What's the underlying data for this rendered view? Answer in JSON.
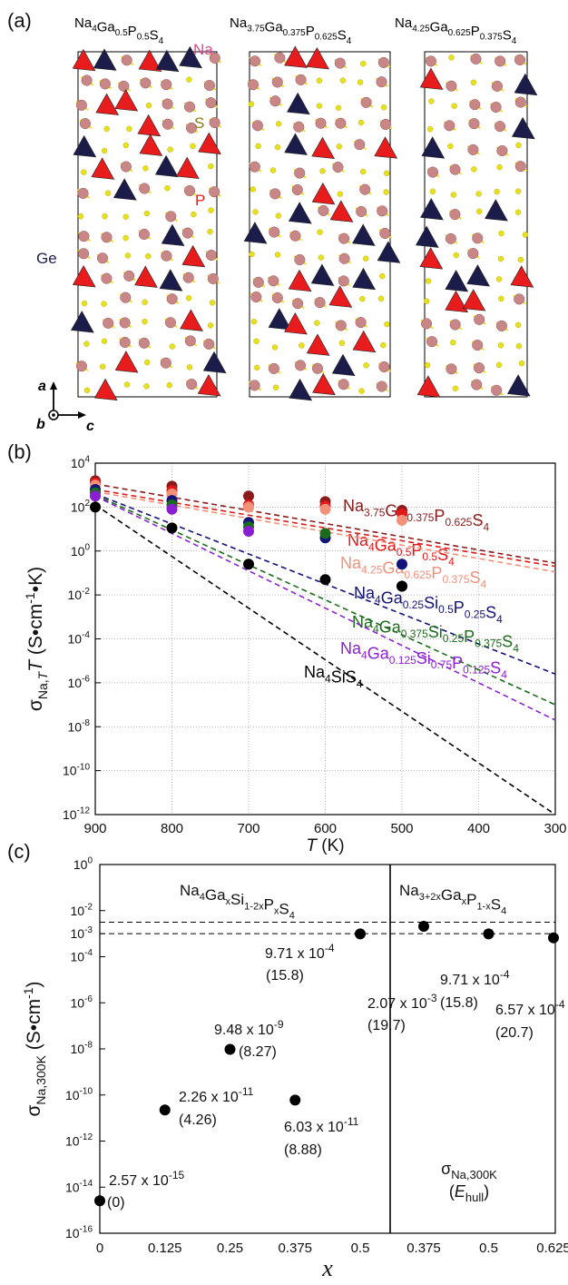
{
  "panels": {
    "a": {
      "label": "(a)",
      "structures": [
        {
          "formula_base": "Na",
          "parts": [
            [
              "Na",
              "4"
            ],
            [
              "Ga",
              "0.5"
            ],
            [
              "P",
              "0.5"
            ],
            [
              "S",
              "4"
            ]
          ]
        },
        {
          "formula_base": "Na",
          "parts": [
            [
              "Na",
              "3.75"
            ],
            [
              "Ga",
              "0.375"
            ],
            [
              "P",
              "0.625"
            ],
            [
              "S",
              "4"
            ]
          ]
        },
        {
          "formula_base": "Na",
          "parts": [
            [
              "Na",
              "4.25"
            ],
            [
              "Ga",
              "0.625"
            ],
            [
              "P",
              "0.375"
            ],
            [
              "S",
              "4"
            ]
          ]
        }
      ],
      "legend": {
        "na": "Na",
        "s": "S",
        "p": "P",
        "ge": "Ge"
      },
      "axes": {
        "a": "a",
        "b": "b",
        "c": "c"
      },
      "colors": {
        "na": "#c98686",
        "s": "#e8e01a",
        "p": "#e81c1c",
        "ge": "#1c1c4a"
      }
    },
    "b": {
      "label": "(b)"
    },
    "c": {
      "label": "(c)"
    }
  },
  "chart_data": [
    {
      "type": "scatter",
      "panel": "b",
      "xlabel": "T (K)",
      "ylabel": "σNa,T T (S•cm-1•K)",
      "x_ticks": [
        900,
        800,
        700,
        600,
        500,
        400,
        300
      ],
      "y_ticks_exp": [
        4,
        2,
        0,
        -2,
        -4,
        -6,
        -8,
        -10,
        -12
      ],
      "xlim": [
        300,
        900
      ],
      "ylim_log10": [
        -12,
        4
      ],
      "grid": true,
      "series": [
        {
          "name": "Na3.75Ga0.375P0.625S4",
          "color": "#8b1a1a",
          "parts": [
            [
              "Na",
              "3.75"
            ],
            [
              "Ga",
              "0.375"
            ],
            [
              "P",
              "0.625"
            ],
            [
              "S",
              "4"
            ]
          ],
          "x": [
            900,
            800,
            700,
            600,
            500
          ],
          "y_log10": [
            3.2,
            2.95,
            2.5,
            2.25,
            1.85
          ],
          "fit_log10": [
            3.05,
            -0.55
          ]
        },
        {
          "name": "Na4Ga0.5P0.5S4",
          "color": "#e01818",
          "parts": [
            [
              "Na",
              "4"
            ],
            [
              "Ga",
              "0.5"
            ],
            [
              "P",
              "0.5"
            ],
            [
              "S",
              "4"
            ]
          ],
          "x": [
            900,
            800,
            700,
            600,
            500
          ],
          "y_log10": [
            3.1,
            2.75,
            2.1,
            2.05,
            1.7
          ],
          "fit_log10": [
            2.8,
            -0.7
          ]
        },
        {
          "name": "Na4.25Ga0.625P0.375S4",
          "color": "#f2907a",
          "parts": [
            [
              "Na",
              "4.25"
            ],
            [
              "Ga",
              "0.625"
            ],
            [
              "P",
              "0.375"
            ],
            [
              "S",
              "4"
            ]
          ],
          "x": [
            900,
            800,
            700,
            600,
            500
          ],
          "y_log10": [
            3.0,
            2.6,
            2.0,
            1.9,
            1.4
          ],
          "fit_log10": [
            2.7,
            -0.95
          ]
        },
        {
          "name": "Na4Ga0.25Si0.5P0.25S4",
          "color": "#12127a",
          "parts": [
            [
              "Na",
              "4"
            ],
            [
              "Ga",
              "0.25"
            ],
            [
              "Si",
              "0.5"
            ],
            [
              "P",
              "0.25"
            ],
            [
              "S",
              "4"
            ]
          ],
          "x": [
            900,
            800,
            700,
            600,
            500
          ],
          "y_log10": [
            2.8,
            2.3,
            1.3,
            0.6,
            -0.6
          ],
          "fit_log10": [
            2.6,
            -5.6
          ]
        },
        {
          "name": "Na4Ga0.375Si0.25P0.375S4",
          "color": "#1a6b1a",
          "parts": [
            [
              "Na",
              "4"
            ],
            [
              "Ga",
              "0.375"
            ],
            [
              "Si",
              "0.25"
            ],
            [
              "P",
              "0.375"
            ],
            [
              "S",
              "4"
            ]
          ],
          "x": [
            900,
            800,
            700,
            600,
            500
          ],
          "y_log10": [
            2.65,
            2.1,
            1.1,
            0.8,
            -1.6
          ],
          "fit_log10": [
            2.55,
            -7.0
          ]
        },
        {
          "name": "Na4Ga0.125Si0.75P0.125S4",
          "color": "#8a1fd1",
          "parts": [
            [
              "Na",
              "4"
            ],
            [
              "Ga",
              "0.125"
            ],
            [
              "Si",
              "0.75"
            ],
            [
              "P",
              "0.125"
            ],
            [
              "S",
              "4"
            ]
          ],
          "x": [
            900,
            800,
            700
          ],
          "y_log10": [
            2.5,
            1.9,
            0.9
          ],
          "fit_log10": [
            2.5,
            -7.7
          ]
        },
        {
          "name": "Na4SiS4",
          "color": "#000000",
          "parts": [
            [
              "Na",
              "4"
            ],
            [
              "Si",
              ""
            ],
            [
              "S",
              "4"
            ]
          ],
          "x": [
            900,
            800,
            700,
            600,
            500
          ],
          "y_log10": [
            2.0,
            1.05,
            -0.6,
            -1.3,
            -1.6
          ],
          "fit_log10": [
            2.1,
            -12.0
          ]
        }
      ]
    },
    {
      "type": "scatter",
      "panel": "c",
      "xlabel": "x",
      "ylabel": "σNa,300K (S•cm-1)",
      "y_ticks_exp": [
        0,
        -2,
        -3,
        -4,
        -6,
        -8,
        -10,
        -12,
        -14,
        -16
      ],
      "ylim_log10": [
        -16,
        0
      ],
      "hlines_log10": [
        -2.5,
        -3
      ],
      "groups": [
        {
          "title_parts": [
            [
              "Na",
              "4"
            ],
            [
              "Ga",
              "x"
            ],
            [
              "Si",
              "1-2x"
            ],
            [
              "P",
              "x"
            ],
            [
              "S",
              "4"
            ]
          ],
          "x_ticks": [
            "0",
            "0.125",
            "0.25",
            "0.375",
            "0.5"
          ],
          "points": [
            {
              "x": 0,
              "y_log10": -14.59,
              "value": "2.57 x 10",
              "exp": "-15",
              "ehull": "(0)"
            },
            {
              "x": 0.125,
              "y_log10": -10.65,
              "value": "2.26 x 10",
              "exp": "-11",
              "ehull": "(4.26)"
            },
            {
              "x": 0.25,
              "y_log10": -8.02,
              "value": "9.48 x 10",
              "exp": "-9",
              "ehull": "(8.27)"
            },
            {
              "x": 0.375,
              "y_log10": -10.22,
              "value": "6.03 x 10",
              "exp": "-11",
              "ehull": "(8.88)"
            },
            {
              "x": 0.5,
              "y_log10": -3.01,
              "value": "9.71 x 10",
              "exp": "-4",
              "ehull": "(15.8)"
            }
          ]
        },
        {
          "title_parts": [
            [
              "Na",
              "3+2x"
            ],
            [
              "Ga",
              "x"
            ],
            [
              "P",
              "1-x"
            ],
            [
              "S",
              "4"
            ]
          ],
          "x_ticks": [
            "0.375",
            "0.5",
            "0.625"
          ],
          "points": [
            {
              "x": 0.375,
              "y_log10": -2.68,
              "value": "2.07 x 10",
              "exp": "-3",
              "ehull": "(19.7)"
            },
            {
              "x": 0.5,
              "y_log10": -3.01,
              "value": "9.71 x 10",
              "exp": "-4",
              "ehull": "(15.8)"
            },
            {
              "x": 0.625,
              "y_log10": -3.18,
              "value": "6.57 x 10",
              "exp": "-4",
              "ehull": "(20.7)"
            }
          ]
        }
      ],
      "legend": {
        "line1": "σNa,300K",
        "line2": "(Ehull)"
      }
    }
  ]
}
